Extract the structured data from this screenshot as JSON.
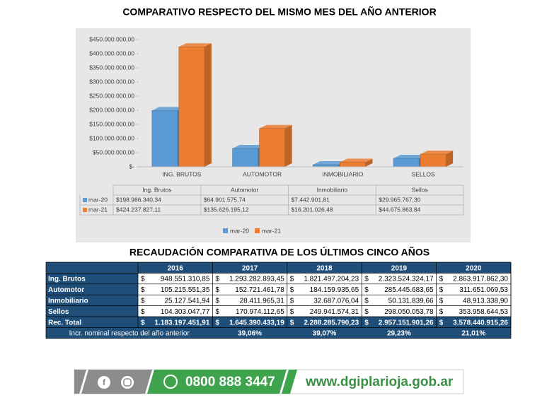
{
  "chart_data": {
    "type": "bar",
    "title": "COMPARATIVO RESPECTO DEL MISMO MES DEL AÑO ANTERIOR",
    "categories": [
      "ING. BRUTOS",
      "AUTOMOTOR",
      "INMOBILIARIO",
      "SELLOS"
    ],
    "table_header": [
      "Ing. Brutos",
      "Automotor",
      "Inmobiliario",
      "Sellos"
    ],
    "series": [
      {
        "name": "mar-20",
        "color": "#5b9bd5",
        "values": [
          198986340.34,
          64901575.74,
          7442901.81,
          29965767.3
        ],
        "value_labels": [
          "$198.986.340,34",
          "$64.901.575,74",
          "$7.442.901,81",
          "$29.965.767,30"
        ]
      },
      {
        "name": "mar-21",
        "color": "#ed7d31",
        "values": [
          424237827.11,
          135626195.12,
          16201026.48,
          44675863.84
        ],
        "value_labels": [
          "$424.237.827,11",
          "$135.626.195,12",
          "$16.201.026,48",
          "$44.675.863,84"
        ]
      }
    ],
    "ylim": [
      0,
      450000000
    ],
    "yticks": [
      {
        "value": 0,
        "label": "$-"
      },
      {
        "value": 50000000,
        "label": "$50.000.000,00"
      },
      {
        "value": 100000000,
        "label": "$100.000.000,00"
      },
      {
        "value": 150000000,
        "label": "$150.000.000,00"
      },
      {
        "value": 200000000,
        "label": "$200.000.000,00"
      },
      {
        "value": 250000000,
        "label": "$250.000.000,00"
      },
      {
        "value": 300000000,
        "label": "$300.000.000,00"
      },
      {
        "value": 350000000,
        "label": "$350.000.000,00"
      },
      {
        "value": 400000000,
        "label": "$400.000.000,00"
      },
      {
        "value": 450000000,
        "label": "$450.000.000,00"
      }
    ],
    "grid": false,
    "legend": "bottom"
  },
  "table": {
    "title": "RECAUDACIÓN COMPARATIVA DE LOS ÚLTIMOS CINCO AÑOS",
    "currency": "$",
    "columns": [
      "2016",
      "2017",
      "2018",
      "2019",
      "2020"
    ],
    "rows": [
      {
        "label": "Ing. Brutos",
        "values": [
          "948.551.310,85",
          "1.293.282.893,45",
          "1.821.497.204,23",
          "2.323.524.324,17",
          "2.863.917.862,30"
        ]
      },
      {
        "label": "Automotor",
        "values": [
          "105.215.551,35",
          "152.721.461,78",
          "184.159.935,65",
          "285.445.683,65",
          "311.651.069,53"
        ]
      },
      {
        "label": "Inmobiliario",
        "values": [
          "25.127.541,94",
          "28.411.965,31",
          "32.687.076,04",
          "50.131.839,66",
          "48.913.338,90"
        ]
      },
      {
        "label": "Sellos",
        "values": [
          "104.303.047,77",
          "170.974.112,65",
          "249.941.574,31",
          "298.050.053,78",
          "353.958.644,53"
        ]
      },
      {
        "label": "Rec. Total",
        "values": [
          "1.183.197.451,91",
          "1.645.390.433,19",
          "2.288.285.790,23",
          "2.957.151.901,26",
          "3.578.440.915,26"
        ]
      }
    ],
    "growth": {
      "label": "Incr. nominal respecto del año anterior",
      "values": [
        "39,06%",
        "39,07%",
        "29,23%",
        "21,01%"
      ]
    }
  },
  "footer": {
    "phone": "0800 888 3447",
    "website": "www.dgiplarioja.gob.ar"
  }
}
